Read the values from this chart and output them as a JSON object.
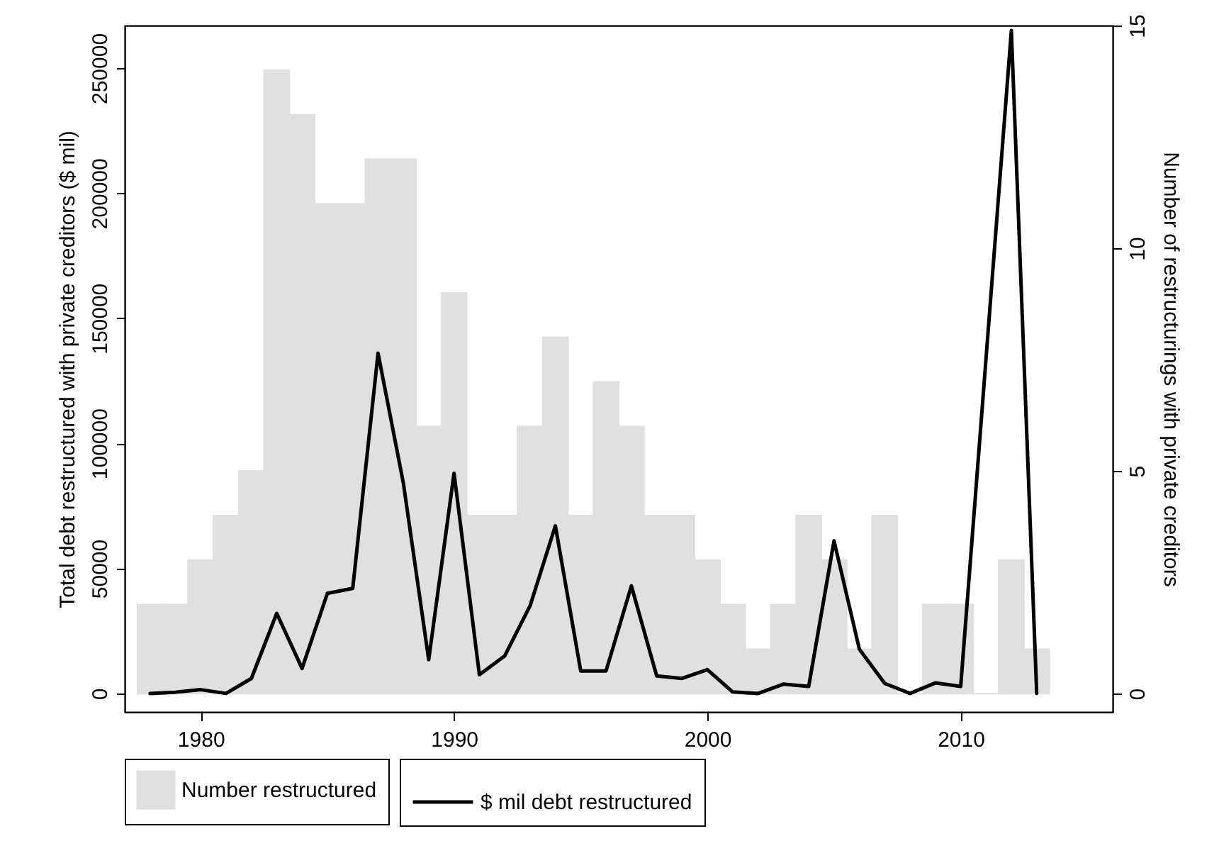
{
  "chart_data": {
    "type": "bar",
    "ylabel": "Total debt restructured with private creditors ($ mil)",
    "y2label": "Number of restructurings with private creditors",
    "xlim": [
      1977,
      2016
    ],
    "xticks": [
      1980,
      1990,
      2000,
      2010
    ],
    "ylim": [
      -7400,
      267000
    ],
    "yticks": [
      0,
      50000,
      100000,
      150000,
      200000,
      250000
    ],
    "y2lim": [
      -0.41,
      15
    ],
    "y2ticks": [
      0,
      5,
      10,
      15
    ],
    "legend": "bottom",
    "grid": false,
    "series": [
      {
        "name": "$ mil debt restructured",
        "type": "line",
        "color": "#000000",
        "x": [
          1978,
          1979,
          1980,
          1981,
          1982,
          1983,
          1984,
          1985,
          1986,
          1987,
          1988,
          1989,
          1990,
          1991,
          1992,
          1993,
          1994,
          1995,
          1996,
          1997,
          1998,
          1999,
          2000,
          2001,
          2002,
          2003,
          2004,
          2005,
          2006,
          2007,
          2008,
          2009,
          2010,
          2012,
          2013
        ],
        "values": [
          0,
          500,
          1500,
          0,
          6000,
          32000,
          10000,
          40000,
          42000,
          136000,
          84000,
          13500,
          88000,
          7500,
          15000,
          35000,
          67000,
          9000,
          9000,
          43000,
          7000,
          6000,
          9500,
          600,
          0,
          3700,
          2800,
          61000,
          17700,
          4000,
          0,
          4200,
          2800,
          265000,
          0
        ]
      },
      {
        "name": "Number restructured",
        "axis": "y2",
        "color": "#e0e0e0",
        "x": [
          1978,
          1979,
          1980,
          1981,
          1982,
          1983,
          1984,
          1985,
          1986,
          1987,
          1988,
          1989,
          1990,
          1991,
          1992,
          1993,
          1994,
          1995,
          1996,
          1997,
          1998,
          1999,
          2000,
          2001,
          2002,
          2003,
          2004,
          2005,
          2006,
          2007,
          2008,
          2009,
          2010,
          2011,
          2012,
          2013
        ],
        "values": [
          2,
          2,
          3,
          4,
          5,
          14,
          13,
          11,
          11,
          12,
          12,
          6,
          9,
          4,
          4,
          6,
          8,
          4,
          7,
          6,
          4,
          4,
          3,
          2,
          1,
          2,
          4,
          3,
          1,
          4,
          0,
          2,
          2,
          0,
          3,
          1
        ]
      }
    ]
  }
}
